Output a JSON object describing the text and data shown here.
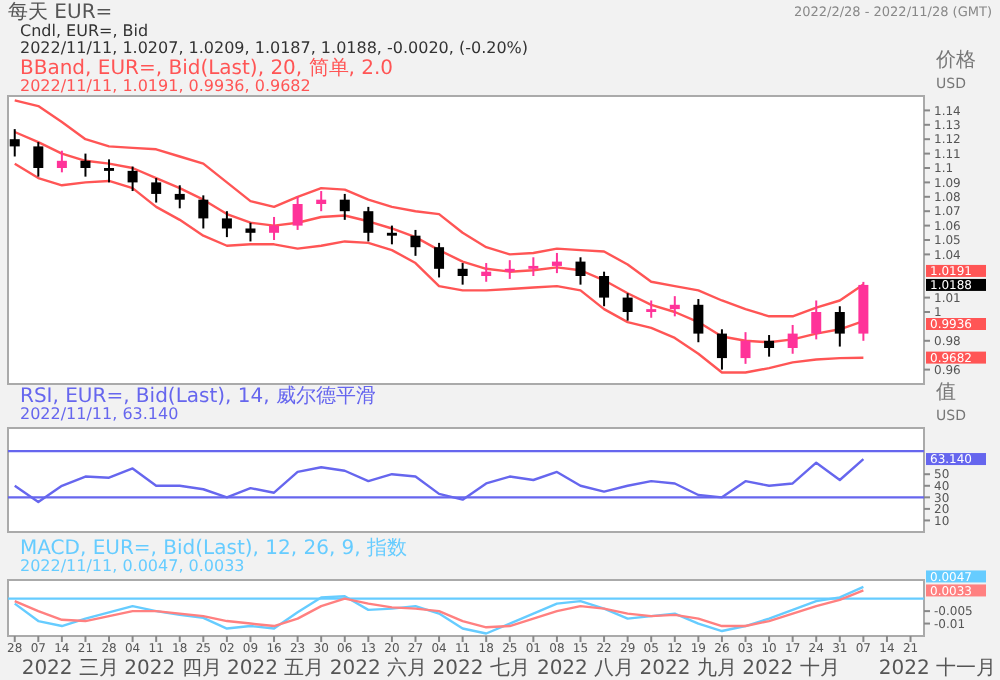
{
  "chart_data": [
    {
      "type": "candlestick",
      "title": "每天 EUR=",
      "subtitle": "2022/2/28 - 2022/11/28 (GMT)",
      "ylabel": "价格 USD",
      "x": [
        "2022-02-28",
        "2022-03-07",
        "2022-03-14",
        "2022-03-21",
        "2022-03-28",
        "2022-04-04",
        "2022-04-11",
        "2022-04-18",
        "2022-04-25",
        "2022-05-02",
        "2022-05-09",
        "2022-05-16",
        "2022-05-23",
        "2022-05-30",
        "2022-06-06",
        "2022-06-13",
        "2022-06-20",
        "2022-06-27",
        "2022-07-04",
        "2022-07-11",
        "2022-07-18",
        "2022-07-25",
        "2022-08-01",
        "2022-08-08",
        "2022-08-15",
        "2022-08-22",
        "2022-08-29",
        "2022-09-05",
        "2022-09-12",
        "2022-09-19",
        "2022-09-26",
        "2022-10-03",
        "2022-10-10",
        "2022-10-17",
        "2022-10-24",
        "2022-10-31",
        "2022-11-07"
      ],
      "ohlc": [
        [
          1.12,
          1.127,
          1.108,
          1.115
        ],
        [
          1.115,
          1.118,
          1.094,
          1.1
        ],
        [
          1.1,
          1.112,
          1.097,
          1.105
        ],
        [
          1.105,
          1.11,
          1.094,
          1.1
        ],
        [
          1.1,
          1.106,
          1.09,
          1.098
        ],
        [
          1.098,
          1.101,
          1.084,
          1.09
        ],
        [
          1.09,
          1.093,
          1.076,
          1.082
        ],
        [
          1.082,
          1.088,
          1.072,
          1.078
        ],
        [
          1.078,
          1.081,
          1.058,
          1.065
        ],
        [
          1.065,
          1.07,
          1.052,
          1.058
        ],
        [
          1.058,
          1.062,
          1.049,
          1.055
        ],
        [
          1.055,
          1.066,
          1.05,
          1.06
        ],
        [
          1.06,
          1.08,
          1.057,
          1.075
        ],
        [
          1.075,
          1.084,
          1.07,
          1.078
        ],
        [
          1.078,
          1.082,
          1.064,
          1.07
        ],
        [
          1.07,
          1.073,
          1.049,
          1.055
        ],
        [
          1.055,
          1.06,
          1.047,
          1.053
        ],
        [
          1.053,
          1.057,
          1.039,
          1.045
        ],
        [
          1.045,
          1.048,
          1.024,
          1.03
        ],
        [
          1.03,
          1.034,
          1.019,
          1.025
        ],
        [
          1.025,
          1.034,
          1.021,
          1.028
        ],
        [
          1.028,
          1.036,
          1.023,
          1.03
        ],
        [
          1.03,
          1.038,
          1.025,
          1.032
        ],
        [
          1.032,
          1.041,
          1.027,
          1.035
        ],
        [
          1.035,
          1.038,
          1.019,
          1.025
        ],
        [
          1.025,
          1.028,
          1.004,
          1.01
        ],
        [
          1.01,
          1.013,
          0.994,
          1.0
        ],
        [
          1.0,
          1.008,
          0.996,
          1.002
        ],
        [
          1.002,
          1.011,
          0.997,
          1.005
        ],
        [
          1.005,
          1.009,
          0.979,
          0.985
        ],
        [
          0.985,
          0.988,
          0.96,
          0.968
        ],
        [
          0.968,
          0.986,
          0.964,
          0.98
        ],
        [
          0.98,
          0.984,
          0.969,
          0.975
        ],
        [
          0.975,
          0.991,
          0.971,
          0.985
        ],
        [
          0.985,
          1.008,
          0.981,
          1.0
        ],
        [
          1.0,
          1.004,
          0.976,
          0.985
        ],
        [
          0.985,
          1.0209,
          0.98,
          1.0188
        ]
      ],
      "colors": [
        "#000000",
        "#000000",
        "#ff3399",
        "#000000",
        "#000000",
        "#000000",
        "#000000",
        "#000000",
        "#000000",
        "#000000",
        "#000000",
        "#ff3399",
        "#ff3399",
        "#ff3399",
        "#000000",
        "#000000",
        "#000000",
        "#000000",
        "#000000",
        "#000000",
        "#ff3399",
        "#ff3399",
        "#ff3399",
        "#ff3399",
        "#000000",
        "#000000",
        "#000000",
        "#ff3399",
        "#ff3399",
        "#000000",
        "#000000",
        "#ff3399",
        "#000000",
        "#ff3399",
        "#ff3399",
        "#000000",
        "#ff3399"
      ],
      "series": [
        {
          "type": "line",
          "color": "#ff5555",
          "values": [
            1.147,
            1.143,
            1.132,
            1.12,
            1.115,
            1.114,
            1.113,
            1.108,
            1.103,
            1.09,
            1.077,
            1.073,
            1.08,
            1.086,
            1.085,
            1.078,
            1.073,
            1.07,
            1.068,
            1.055,
            1.045,
            1.04,
            1.041,
            1.044,
            1.043,
            1.042,
            1.033,
            1.021,
            1.018,
            1.015,
            1.008,
            1.002,
            0.997,
            0.997,
            1.003,
            1.008,
            1.0191
          ]
        },
        {
          "type": "line",
          "color": "#ff5555",
          "values": [
            1.125,
            1.118,
            1.11,
            1.105,
            1.103,
            1.1,
            1.093,
            1.086,
            1.078,
            1.068,
            1.062,
            1.06,
            1.062,
            1.066,
            1.067,
            1.063,
            1.058,
            1.052,
            1.043,
            1.035,
            1.03,
            1.028,
            1.029,
            1.031,
            1.029,
            1.022,
            1.013,
            1.005,
            1.0,
            0.993,
            0.983,
            0.98,
            0.979,
            0.981,
            0.985,
            0.988,
            0.9936
          ]
        },
        {
          "type": "line",
          "color": "#ff5555",
          "values": [
            1.103,
            1.093,
            1.088,
            1.09,
            1.091,
            1.086,
            1.073,
            1.064,
            1.053,
            1.046,
            1.047,
            1.047,
            1.044,
            1.046,
            1.049,
            1.048,
            1.043,
            1.034,
            1.018,
            1.015,
            1.015,
            1.016,
            1.017,
            1.018,
            1.015,
            1.002,
            0.993,
            0.989,
            0.982,
            0.971,
            0.958,
            0.958,
            0.961,
            0.965,
            0.967,
            0.968,
            0.9682
          ]
        }
      ],
      "xlim": [
        "2022-02-26",
        "2022-11-25"
      ],
      "ylim": [
        0.95,
        1.15
      ],
      "yticks": [
        1.14,
        1.13,
        1.12,
        1.11,
        1.1,
        1.09,
        1.08,
        1.07,
        1.06,
        1.05,
        1.04,
        1.01,
        1,
        0.98,
        0.96
      ],
      "tick_labels": "y",
      "annotations": [
        "Cndl, EUR=, Bid",
        "2022/11/11, 1.0207, 1.0209, 1.0187, 1.0188, -0.0020, (-0.20%)",
        "BBand, EUR=, Bid(Last), 20, 简单, 2.0",
        "2022/11/11, 1.0191, 0.9936, 0.9682",
        "1.0191",
        "1.0188",
        "0.9936",
        "0.9682"
      ]
    },
    {
      "type": "line",
      "ylabel": "值 USD",
      "x": [
        "2022-02-28",
        "2022-03-07",
        "2022-03-14",
        "2022-03-21",
        "2022-03-28",
        "2022-04-04",
        "2022-04-11",
        "2022-04-18",
        "2022-04-25",
        "2022-05-02",
        "2022-05-09",
        "2022-05-16",
        "2022-05-23",
        "2022-05-30",
        "2022-06-06",
        "2022-06-13",
        "2022-06-20",
        "2022-06-27",
        "2022-07-04",
        "2022-07-11",
        "2022-07-18",
        "2022-07-25",
        "2022-08-01",
        "2022-08-08",
        "2022-08-15",
        "2022-08-22",
        "2022-08-29",
        "2022-09-05",
        "2022-09-12",
        "2022-09-19",
        "2022-09-26",
        "2022-10-03",
        "2022-10-10",
        "2022-10-17",
        "2022-10-24",
        "2022-10-31",
        "2022-11-07"
      ],
      "series": [
        {
          "color": "#6666ee",
          "values": [
            40,
            26,
            40,
            48,
            47,
            55,
            40,
            40,
            37,
            30,
            38,
            34,
            52,
            56,
            53,
            44,
            50,
            48,
            33,
            28,
            42,
            48,
            45,
            52,
            40,
            35,
            40,
            44,
            42,
            32,
            30,
            44,
            40,
            42,
            60,
            45,
            63.14
          ]
        }
      ],
      "xlim": [
        "2022-02-26",
        "2022-11-25"
      ],
      "ylim": [
        0,
        90
      ],
      "yticks": [
        10,
        20,
        30,
        40,
        50
      ],
      "tick_labels": "y",
      "ref_lines": [
        {
          "axis": "y",
          "value": 70,
          "color": "#6666ee"
        },
        {
          "axis": "y",
          "value": 30,
          "color": "#6666ee"
        }
      ],
      "annotations": [
        "RSI, EUR=, Bid(Last), 14, 威尔德平滑",
        "2022/11/11, 63.140",
        "63.140"
      ]
    },
    {
      "type": "line",
      "x": [
        "2022-02-28",
        "2022-03-07",
        "2022-03-14",
        "2022-03-21",
        "2022-03-28",
        "2022-04-04",
        "2022-04-11",
        "2022-04-18",
        "2022-04-25",
        "2022-05-02",
        "2022-05-09",
        "2022-05-16",
        "2022-05-23",
        "2022-05-30",
        "2022-06-06",
        "2022-06-13",
        "2022-06-20",
        "2022-06-27",
        "2022-07-04",
        "2022-07-11",
        "2022-07-18",
        "2022-07-25",
        "2022-08-01",
        "2022-08-08",
        "2022-08-15",
        "2022-08-22",
        "2022-08-29",
        "2022-09-05",
        "2022-09-12",
        "2022-09-19",
        "2022-09-26",
        "2022-10-03",
        "2022-10-10",
        "2022-10-17",
        "2022-10-24",
        "2022-10-31",
        "2022-11-07"
      ],
      "series": [
        {
          "color": "#66ccff",
          "values": [
            -0.002,
            -0.009,
            -0.011,
            -0.008,
            -0.0055,
            -0.003,
            -0.005,
            -0.0065,
            -0.0077,
            -0.012,
            -0.011,
            -0.012,
            -0.0055,
            0.0005,
            0.001,
            -0.0045,
            -0.004,
            -0.003,
            -0.006,
            -0.012,
            -0.014,
            -0.01,
            -0.006,
            -0.002,
            -0.001,
            -0.004,
            -0.008,
            -0.007,
            -0.006,
            -0.01,
            -0.013,
            -0.011,
            -0.008,
            -0.0045,
            -0.001,
            0.0005,
            0.0047
          ]
        },
        {
          "color": "#ff8080",
          "values": [
            -0.001,
            -0.005,
            -0.0085,
            -0.009,
            -0.007,
            -0.005,
            -0.005,
            -0.006,
            -0.007,
            -0.009,
            -0.01,
            -0.011,
            -0.008,
            -0.003,
            0,
            -0.002,
            -0.0035,
            -0.004,
            -0.005,
            -0.009,
            -0.0115,
            -0.011,
            -0.008,
            -0.005,
            -0.003,
            -0.004,
            -0.006,
            -0.007,
            -0.0065,
            -0.008,
            -0.011,
            -0.011,
            -0.009,
            -0.006,
            -0.003,
            -0.0005,
            0.0033
          ]
        }
      ],
      "xlim": [
        "2022-02-26",
        "2022-11-25"
      ],
      "ylim": [
        -0.015,
        0.0075
      ],
      "yticks": [
        -0.005,
        -0.01
      ],
      "xticks": [
        {
          "value": "2022-02-28",
          "label": "28"
        },
        {
          "value": "2022-03-07",
          "label": "07"
        },
        {
          "value": "2022-03-14",
          "label": "14"
        },
        {
          "value": "2022-03-21",
          "label": "21"
        },
        {
          "value": "2022-03-28",
          "label": "28"
        },
        {
          "value": "2022-04-04",
          "label": "04"
        },
        {
          "value": "2022-04-11",
          "label": "11"
        },
        {
          "value": "2022-04-18",
          "label": "18"
        },
        {
          "value": "2022-04-25",
          "label": "25"
        },
        {
          "value": "2022-05-02",
          "label": "02"
        },
        {
          "value": "2022-05-09",
          "label": "09"
        },
        {
          "value": "2022-05-16",
          "label": "16"
        },
        {
          "value": "2022-05-23",
          "label": "23"
        },
        {
          "value": "2022-05-30",
          "label": "30"
        },
        {
          "value": "2022-06-06",
          "label": "06"
        },
        {
          "value": "2022-06-13",
          "label": "13"
        },
        {
          "value": "2022-06-20",
          "label": "20"
        },
        {
          "value": "2022-06-27",
          "label": "27"
        },
        {
          "value": "2022-07-04",
          "label": "04"
        },
        {
          "value": "2022-07-11",
          "label": "11"
        },
        {
          "value": "2022-07-18",
          "label": "18"
        },
        {
          "value": "2022-07-25",
          "label": "25"
        },
        {
          "value": "2022-08-01",
          "label": "01"
        },
        {
          "value": "2022-08-08",
          "label": "08"
        },
        {
          "value": "2022-08-15",
          "label": "15"
        },
        {
          "value": "2022-08-22",
          "label": "22"
        },
        {
          "value": "2022-08-29",
          "label": "29"
        },
        {
          "value": "2022-09-05",
          "label": "05"
        },
        {
          "value": "2022-09-12",
          "label": "12"
        },
        {
          "value": "2022-09-19",
          "label": "19"
        },
        {
          "value": "2022-09-26",
          "label": "26"
        },
        {
          "value": "2022-10-03",
          "label": "03"
        },
        {
          "value": "2022-10-10",
          "label": "10"
        },
        {
          "value": "2022-10-17",
          "label": "17"
        },
        {
          "value": "2022-10-24",
          "label": "24"
        },
        {
          "value": "2022-10-31",
          "label": "31"
        },
        {
          "value": "2022-11-07",
          "label": "07"
        },
        {
          "value": "2022-11-14",
          "label": "14"
        },
        {
          "value": "2022-11-21",
          "label": "21"
        }
      ],
      "ref_lines": [
        {
          "axis": "y",
          "value": 0,
          "color": "#66ccff"
        }
      ],
      "annotations": [
        "MACD, EUR=, Bid(Last), 12, 26, 9, 指数",
        "2022/11/11, 0.0047, 0.0033",
        "0.0047",
        "0.0033",
        "2022 三月",
        "2022 四月",
        "2022 五月",
        "2022 六月",
        "2022 七月",
        "2022 八月",
        "2022 九月",
        "2022 十月",
        "2022 十一月"
      ]
    }
  ]
}
